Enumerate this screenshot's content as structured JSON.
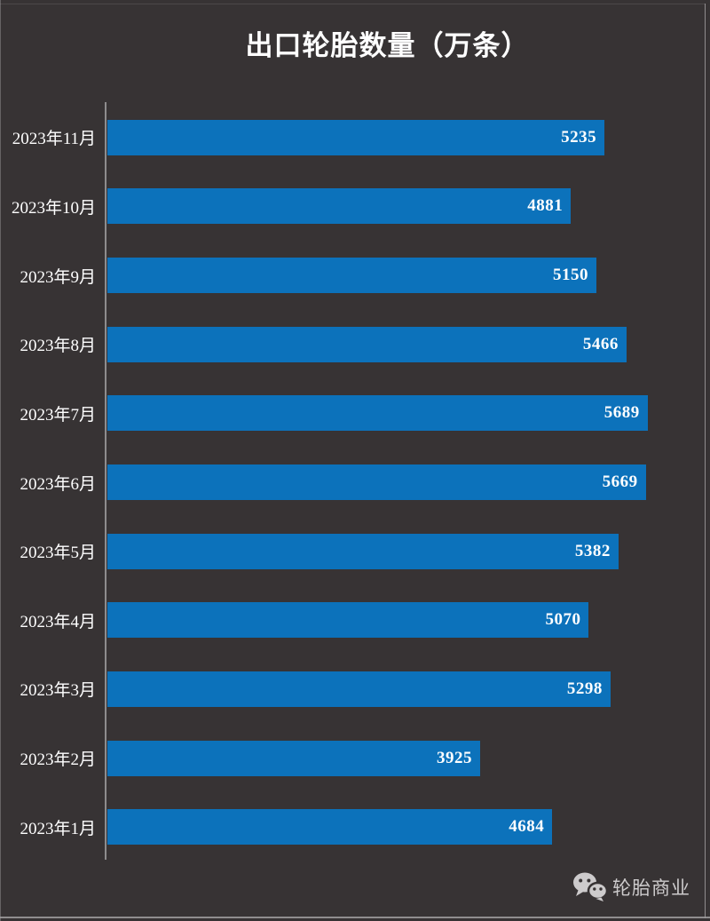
{
  "page": {
    "background_color": "#373334",
    "frame_color": "#a09e9f"
  },
  "header": {
    "title": "出口轮胎数量（万条）"
  },
  "chart_data": {
    "type": "bar",
    "orientation": "horizontal",
    "title": "出口轮胎数量（万条）",
    "xlabel": "",
    "ylabel": "",
    "categories": [
      "2023年11月",
      "2023年10月",
      "2023年9月",
      "2023年8月",
      "2023年7月",
      "2023年6月",
      "2023年5月",
      "2023年4月",
      "2023年3月",
      "2023年2月",
      "2023年1月"
    ],
    "values": [
      5235,
      4881,
      5150,
      5466,
      5689,
      5669,
      5382,
      5070,
      5298,
      3925,
      4684
    ],
    "xlim": [
      0,
      6000
    ],
    "grid": false,
    "legend": false,
    "bar_color": "#0c72bb",
    "value_label_color": "#ffffff",
    "category_label_color": "#ffffff",
    "axis_line_color": "#8e8c8d",
    "value_labels_inside_bar_end": true
  },
  "watermark": {
    "icon": "wechat-icon",
    "label": "轮胎商业",
    "color": "#cdcbcc"
  }
}
